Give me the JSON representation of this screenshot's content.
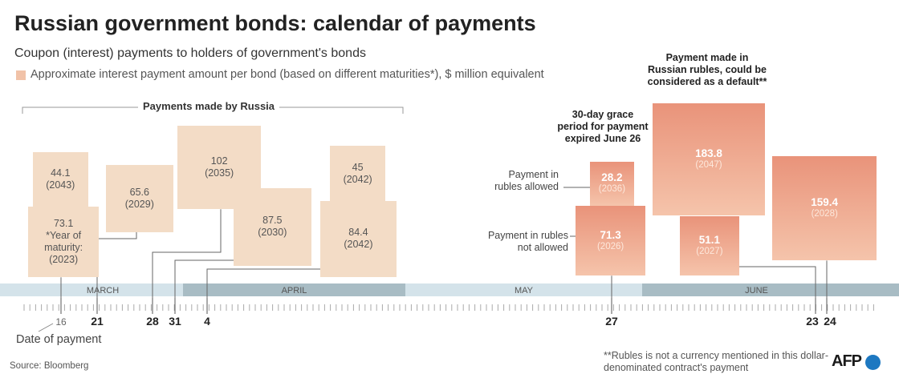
{
  "header": {
    "title": "Russian government bonds: calendar of payments",
    "subtitle": "Coupon (interest) payments to holders of government's bonds",
    "legend": "Approximate interest payment amount per bond (based on different maturities*), $ million equivalent"
  },
  "bracket_label": "Payments made by Russia",
  "payments": [
    {
      "value": 44.1,
      "year": "(2043)"
    },
    {
      "value": 73.1,
      "note": "*Year of maturity:",
      "year": "(2023)"
    },
    {
      "value": 65.6,
      "year": "(2029)"
    },
    {
      "value": 102,
      "year": "(2035)"
    },
    {
      "value": 87.5,
      "year": "(2030)"
    },
    {
      "value": 45,
      "year": "(2042)"
    },
    {
      "value": 84.4,
      "year": "(2042)"
    },
    {
      "value": 28.2,
      "year": "(2036)"
    },
    {
      "value": 71.3,
      "year": "(2026)"
    },
    {
      "value": 183.8,
      "year": "(2047)"
    },
    {
      "value": 51.1,
      "year": "(2027)"
    },
    {
      "value": 159.4,
      "year": "(2028)"
    }
  ],
  "timeline": {
    "months": [
      "MARCH",
      "APRIL",
      "MAY",
      "JUNE"
    ],
    "dates": [
      "16",
      "21",
      "28",
      "31",
      "4",
      "27",
      "23",
      "24"
    ],
    "date_caption": "Date of payment"
  },
  "annotations": {
    "grace": "30-day grace period for payment expired June 26",
    "rubles_allowed": "Payment in rubles allowed",
    "rubles_not_allowed": "Payment in rubles not allowed",
    "default": "Payment made in Russian rubles, could be considered as a default**",
    "footnote": "**Rubles is not a currency mentioned in this dollar-denominated contract's payment"
  },
  "footer": {
    "source": "Source: Bloomberg",
    "logo": "AFP"
  }
}
